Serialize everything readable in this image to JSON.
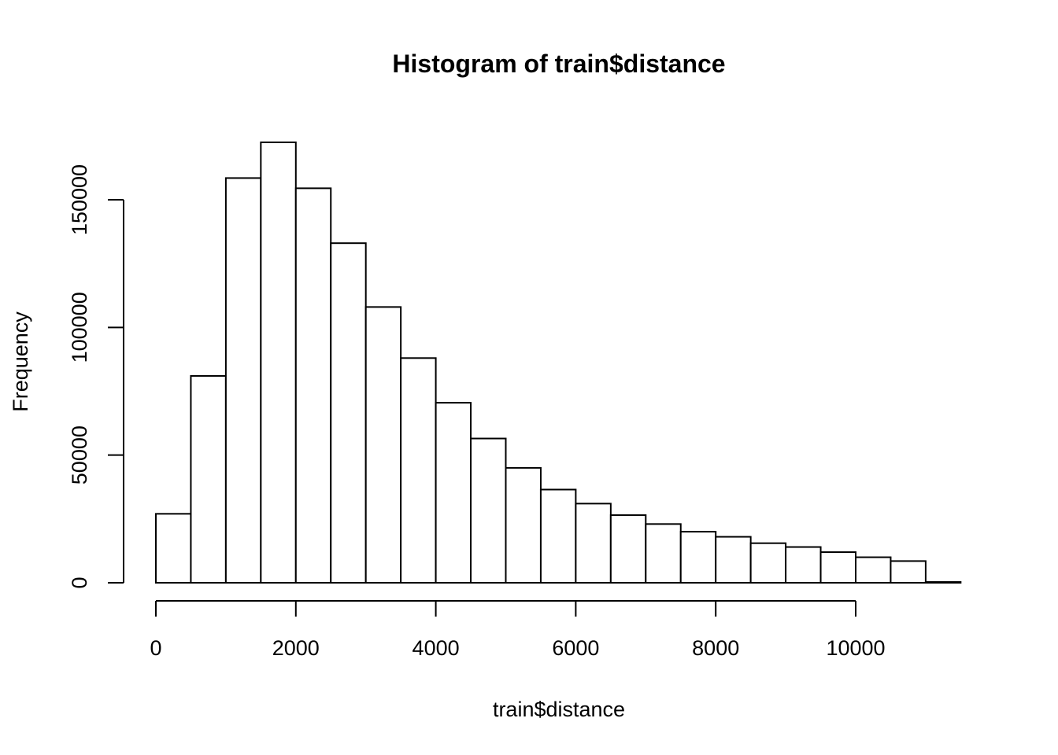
{
  "chart_data": {
    "type": "bar",
    "title": "Histogram of train$distance",
    "xlabel": "train$distance",
    "ylabel": "Frequency",
    "bin_width": 500,
    "bins": [
      {
        "start": 0,
        "end": 500,
        "count": 27000
      },
      {
        "start": 500,
        "end": 1000,
        "count": 81000
      },
      {
        "start": 1000,
        "end": 1500,
        "count": 158500
      },
      {
        "start": 1500,
        "end": 2000,
        "count": 172500
      },
      {
        "start": 2000,
        "end": 2500,
        "count": 154500
      },
      {
        "start": 2500,
        "end": 3000,
        "count": 133000
      },
      {
        "start": 3000,
        "end": 3500,
        "count": 108000
      },
      {
        "start": 3500,
        "end": 4000,
        "count": 88000
      },
      {
        "start": 4000,
        "end": 4500,
        "count": 70500
      },
      {
        "start": 4500,
        "end": 5000,
        "count": 56500
      },
      {
        "start": 5000,
        "end": 5500,
        "count": 45000
      },
      {
        "start": 5500,
        "end": 6000,
        "count": 36500
      },
      {
        "start": 6000,
        "end": 6500,
        "count": 31000
      },
      {
        "start": 6500,
        "end": 7000,
        "count": 26500
      },
      {
        "start": 7000,
        "end": 7500,
        "count": 23000
      },
      {
        "start": 7500,
        "end": 8000,
        "count": 20000
      },
      {
        "start": 8000,
        "end": 8500,
        "count": 18000
      },
      {
        "start": 8500,
        "end": 9000,
        "count": 15500
      },
      {
        "start": 9000,
        "end": 9500,
        "count": 14000
      },
      {
        "start": 9500,
        "end": 10000,
        "count": 12000
      },
      {
        "start": 10000,
        "end": 10500,
        "count": 10000
      },
      {
        "start": 10500,
        "end": 11000,
        "count": 8500
      },
      {
        "start": 11000,
        "end": 11500,
        "count": 300
      }
    ],
    "x_axis": {
      "ticks": [
        0,
        2000,
        4000,
        6000,
        8000,
        10000
      ],
      "tick_labels": [
        "0",
        "2000",
        "4000",
        "6000",
        "8000",
        "10000"
      ],
      "range": [
        0,
        11500
      ]
    },
    "y_axis": {
      "ticks": [
        0,
        50000,
        100000,
        150000
      ],
      "tick_labels": [
        "0",
        "50000",
        "100000",
        "150000"
      ],
      "range": [
        0,
        172500
      ]
    },
    "grid": false,
    "legend": "none"
  }
}
